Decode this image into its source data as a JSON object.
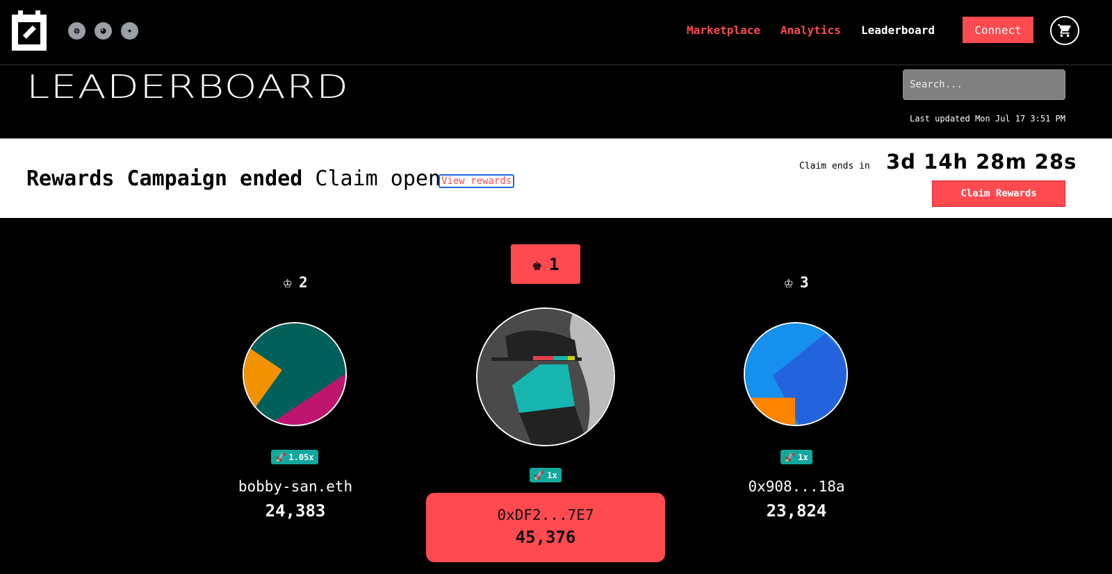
{
  "nav": {
    "links": [
      {
        "label": "Marketplace",
        "color": "#ff4a50"
      },
      {
        "label": "Analytics",
        "color": "#ff4a50"
      },
      {
        "label": "Leaderboard",
        "color": "#ffffff"
      }
    ],
    "connect": "Connect",
    "social": [
      "globe-icon",
      "discord-icon",
      "twitter-icon"
    ]
  },
  "header": {
    "title": "LEADERBOARD",
    "search_placeholder": "Search...",
    "last_updated_label": "Last updated",
    "last_updated": "Mon Jul 17 3:51 PM"
  },
  "banner": {
    "title": "Rewards Campaign ended",
    "subtitle": "Claim open",
    "view_rewards": "View rewards",
    "claim_ends_label": "Claim ends in",
    "countdown": "3d 14h 28m 28s",
    "claim_button": "Claim Rewards"
  },
  "podium": [
    {
      "rank": "2",
      "boost": "1.05x",
      "name": "bobby-san.eth",
      "score": "24,383"
    },
    {
      "rank": "1",
      "boost": "1x",
      "name": "0xDF2...7E7",
      "score": "45,376"
    },
    {
      "rank": "3",
      "boost": "1x",
      "name": "0x908...18a",
      "score": "23,824"
    }
  ],
  "colors": {
    "accent": "#ff4a50",
    "boost": "#13a89e"
  }
}
